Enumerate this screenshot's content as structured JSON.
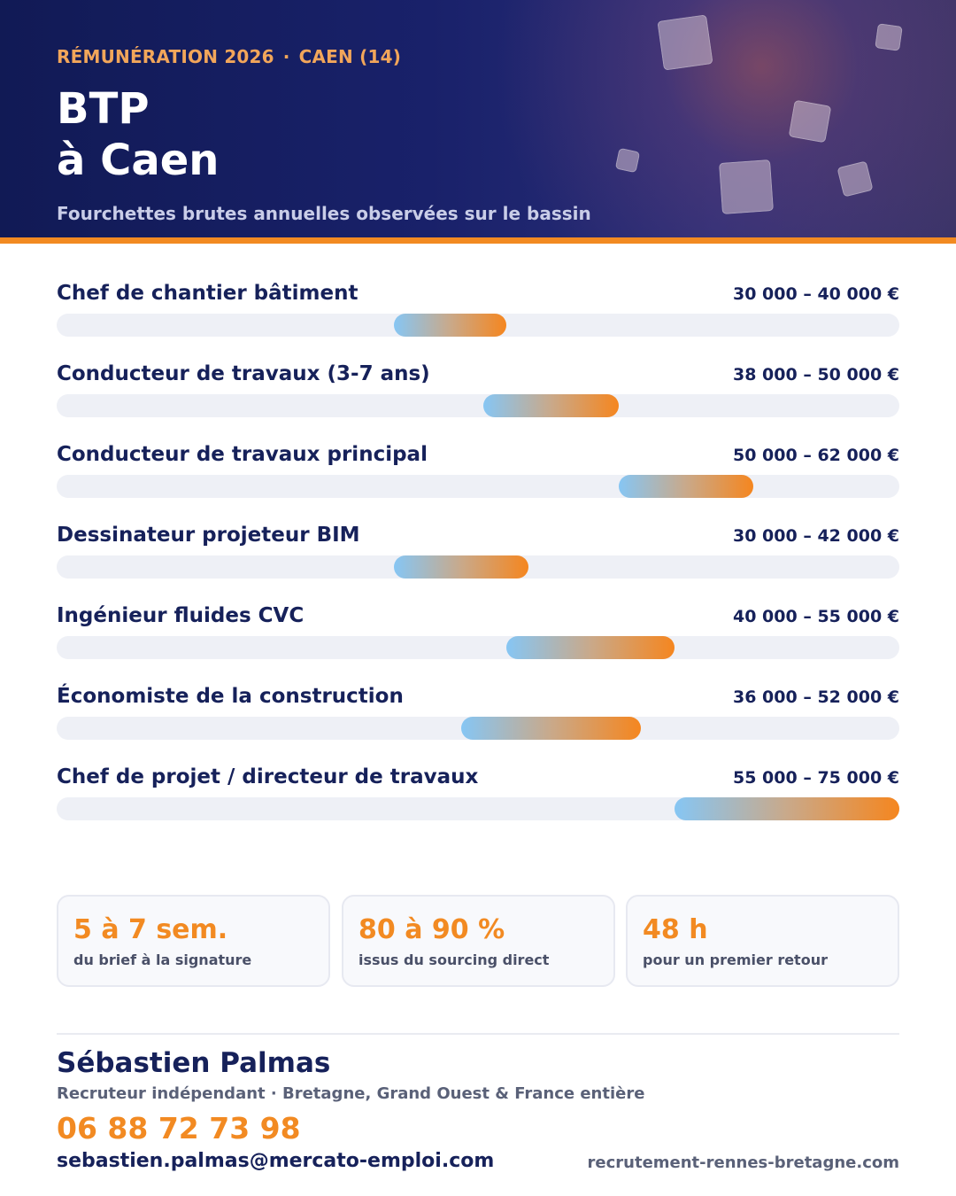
{
  "header": {
    "eyebrow_left": "RÉMUNÉRATION 2026",
    "eyebrow_sep": "·",
    "eyebrow_right": "CAEN (14)",
    "title_line1": "BTP",
    "title_line2": "à Caen",
    "subtitle": "Fourchettes brutes annuelles observées sur le bassin"
  },
  "colors": {
    "navy": "#16215a",
    "accent_orange": "#f28a22",
    "bar_start_blue": "#86c6f4",
    "track": "#eef0f6"
  },
  "chart_data": {
    "type": "range-bar",
    "unit": "€ brut annuel",
    "scale": [
      0,
      75000
    ],
    "rows": [
      {
        "label": "Chef de chantier bâtiment",
        "range_text": "30 000 – 40 000 €",
        "min": 30000,
        "max": 40000
      },
      {
        "label": "Conducteur de travaux (3-7 ans)",
        "range_text": "38 000 – 50 000 €",
        "min": 38000,
        "max": 50000
      },
      {
        "label": "Conducteur de travaux principal",
        "range_text": "50 000 – 62 000 €",
        "min": 50000,
        "max": 62000
      },
      {
        "label": "Dessinateur projeteur BIM",
        "range_text": "30 000 – 42 000 €",
        "min": 30000,
        "max": 42000
      },
      {
        "label": "Ingénieur fluides CVC",
        "range_text": "40 000 – 55 000 €",
        "min": 40000,
        "max": 55000
      },
      {
        "label": "Économiste de la construction",
        "range_text": "36 000 – 52 000 €",
        "min": 36000,
        "max": 52000
      },
      {
        "label": "Chef de projet / directeur de travaux",
        "range_text": "55 000 – 75 000 €",
        "min": 55000,
        "max": 75000
      }
    ]
  },
  "stats": [
    {
      "value": "5 à 7 sem.",
      "desc": "du brief à la signature"
    },
    {
      "value": "80 à 90 %",
      "desc": "issus du sourcing direct"
    },
    {
      "value": "48 h",
      "desc": "pour un premier retour"
    }
  ],
  "contact": {
    "name": "Sébastien Palmas",
    "role": "Recruteur indépendant · Bretagne, Grand Ouest & France entière",
    "phone": "06 88 72 73 98",
    "email": "sebastien.palmas@mercato-emploi.com",
    "website": "recrutement-rennes-bretagne.com"
  }
}
